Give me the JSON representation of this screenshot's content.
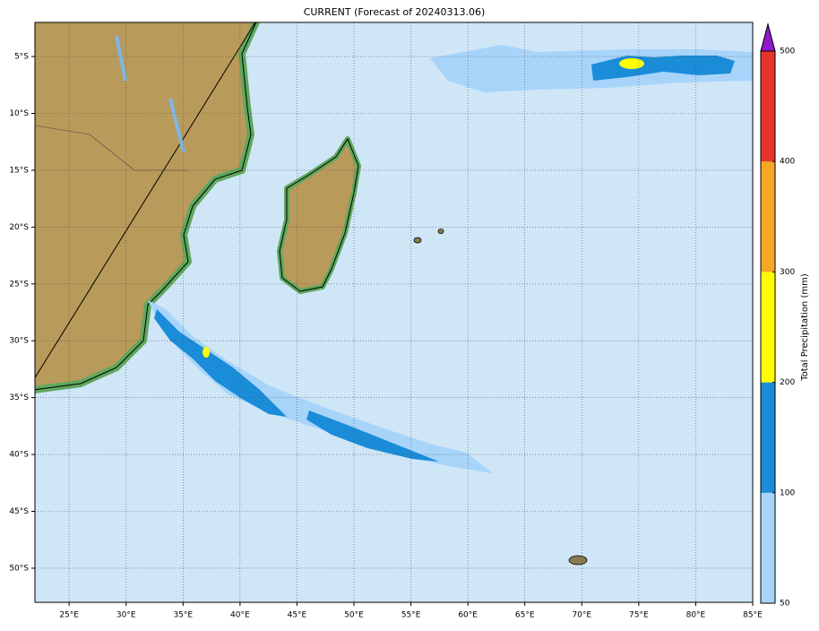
{
  "title": "CURRENT (Forecast of 20240313.06)",
  "map": {
    "xlim": [
      22,
      85
    ],
    "ylim": [
      -2,
      -53
    ],
    "xticks": [
      {
        "value": 25,
        "label": "25°E"
      },
      {
        "value": 30,
        "label": "30°E"
      },
      {
        "value": 35,
        "label": "35°E"
      },
      {
        "value": 40,
        "label": "40°E"
      },
      {
        "value": 45,
        "label": "45°E"
      },
      {
        "value": 50,
        "label": "50°E"
      },
      {
        "value": 55,
        "label": "55°E"
      },
      {
        "value": 60,
        "label": "60°E"
      },
      {
        "value": 65,
        "label": "65°E"
      },
      {
        "value": 70,
        "label": "70°E"
      },
      {
        "value": 75,
        "label": "75°E"
      },
      {
        "value": 80,
        "label": "80°E"
      },
      {
        "value": 85,
        "label": "85°E"
      }
    ],
    "yticks": [
      {
        "value": -5,
        "label": "5°S"
      },
      {
        "value": -10,
        "label": "10°S"
      },
      {
        "value": -15,
        "label": "15°S"
      },
      {
        "value": -20,
        "label": "20°S"
      },
      {
        "value": -25,
        "label": "25°S"
      },
      {
        "value": -30,
        "label": "30°S"
      },
      {
        "value": -35,
        "label": "35°S"
      },
      {
        "value": -40,
        "label": "40°S"
      },
      {
        "value": -45,
        "label": "45°S"
      },
      {
        "value": -50,
        "label": "50°S"
      }
    ],
    "grid": true
  },
  "colorbar": {
    "label": "Total Precipitation (mm)",
    "ticks": [
      50,
      100,
      200,
      300,
      400,
      500
    ],
    "colors": [
      "#a8d4fa",
      "#1a8cd8",
      "#ffff00",
      "#f5a623",
      "#e8352a"
    ],
    "extend_color": "#8e1ac8"
  }
}
